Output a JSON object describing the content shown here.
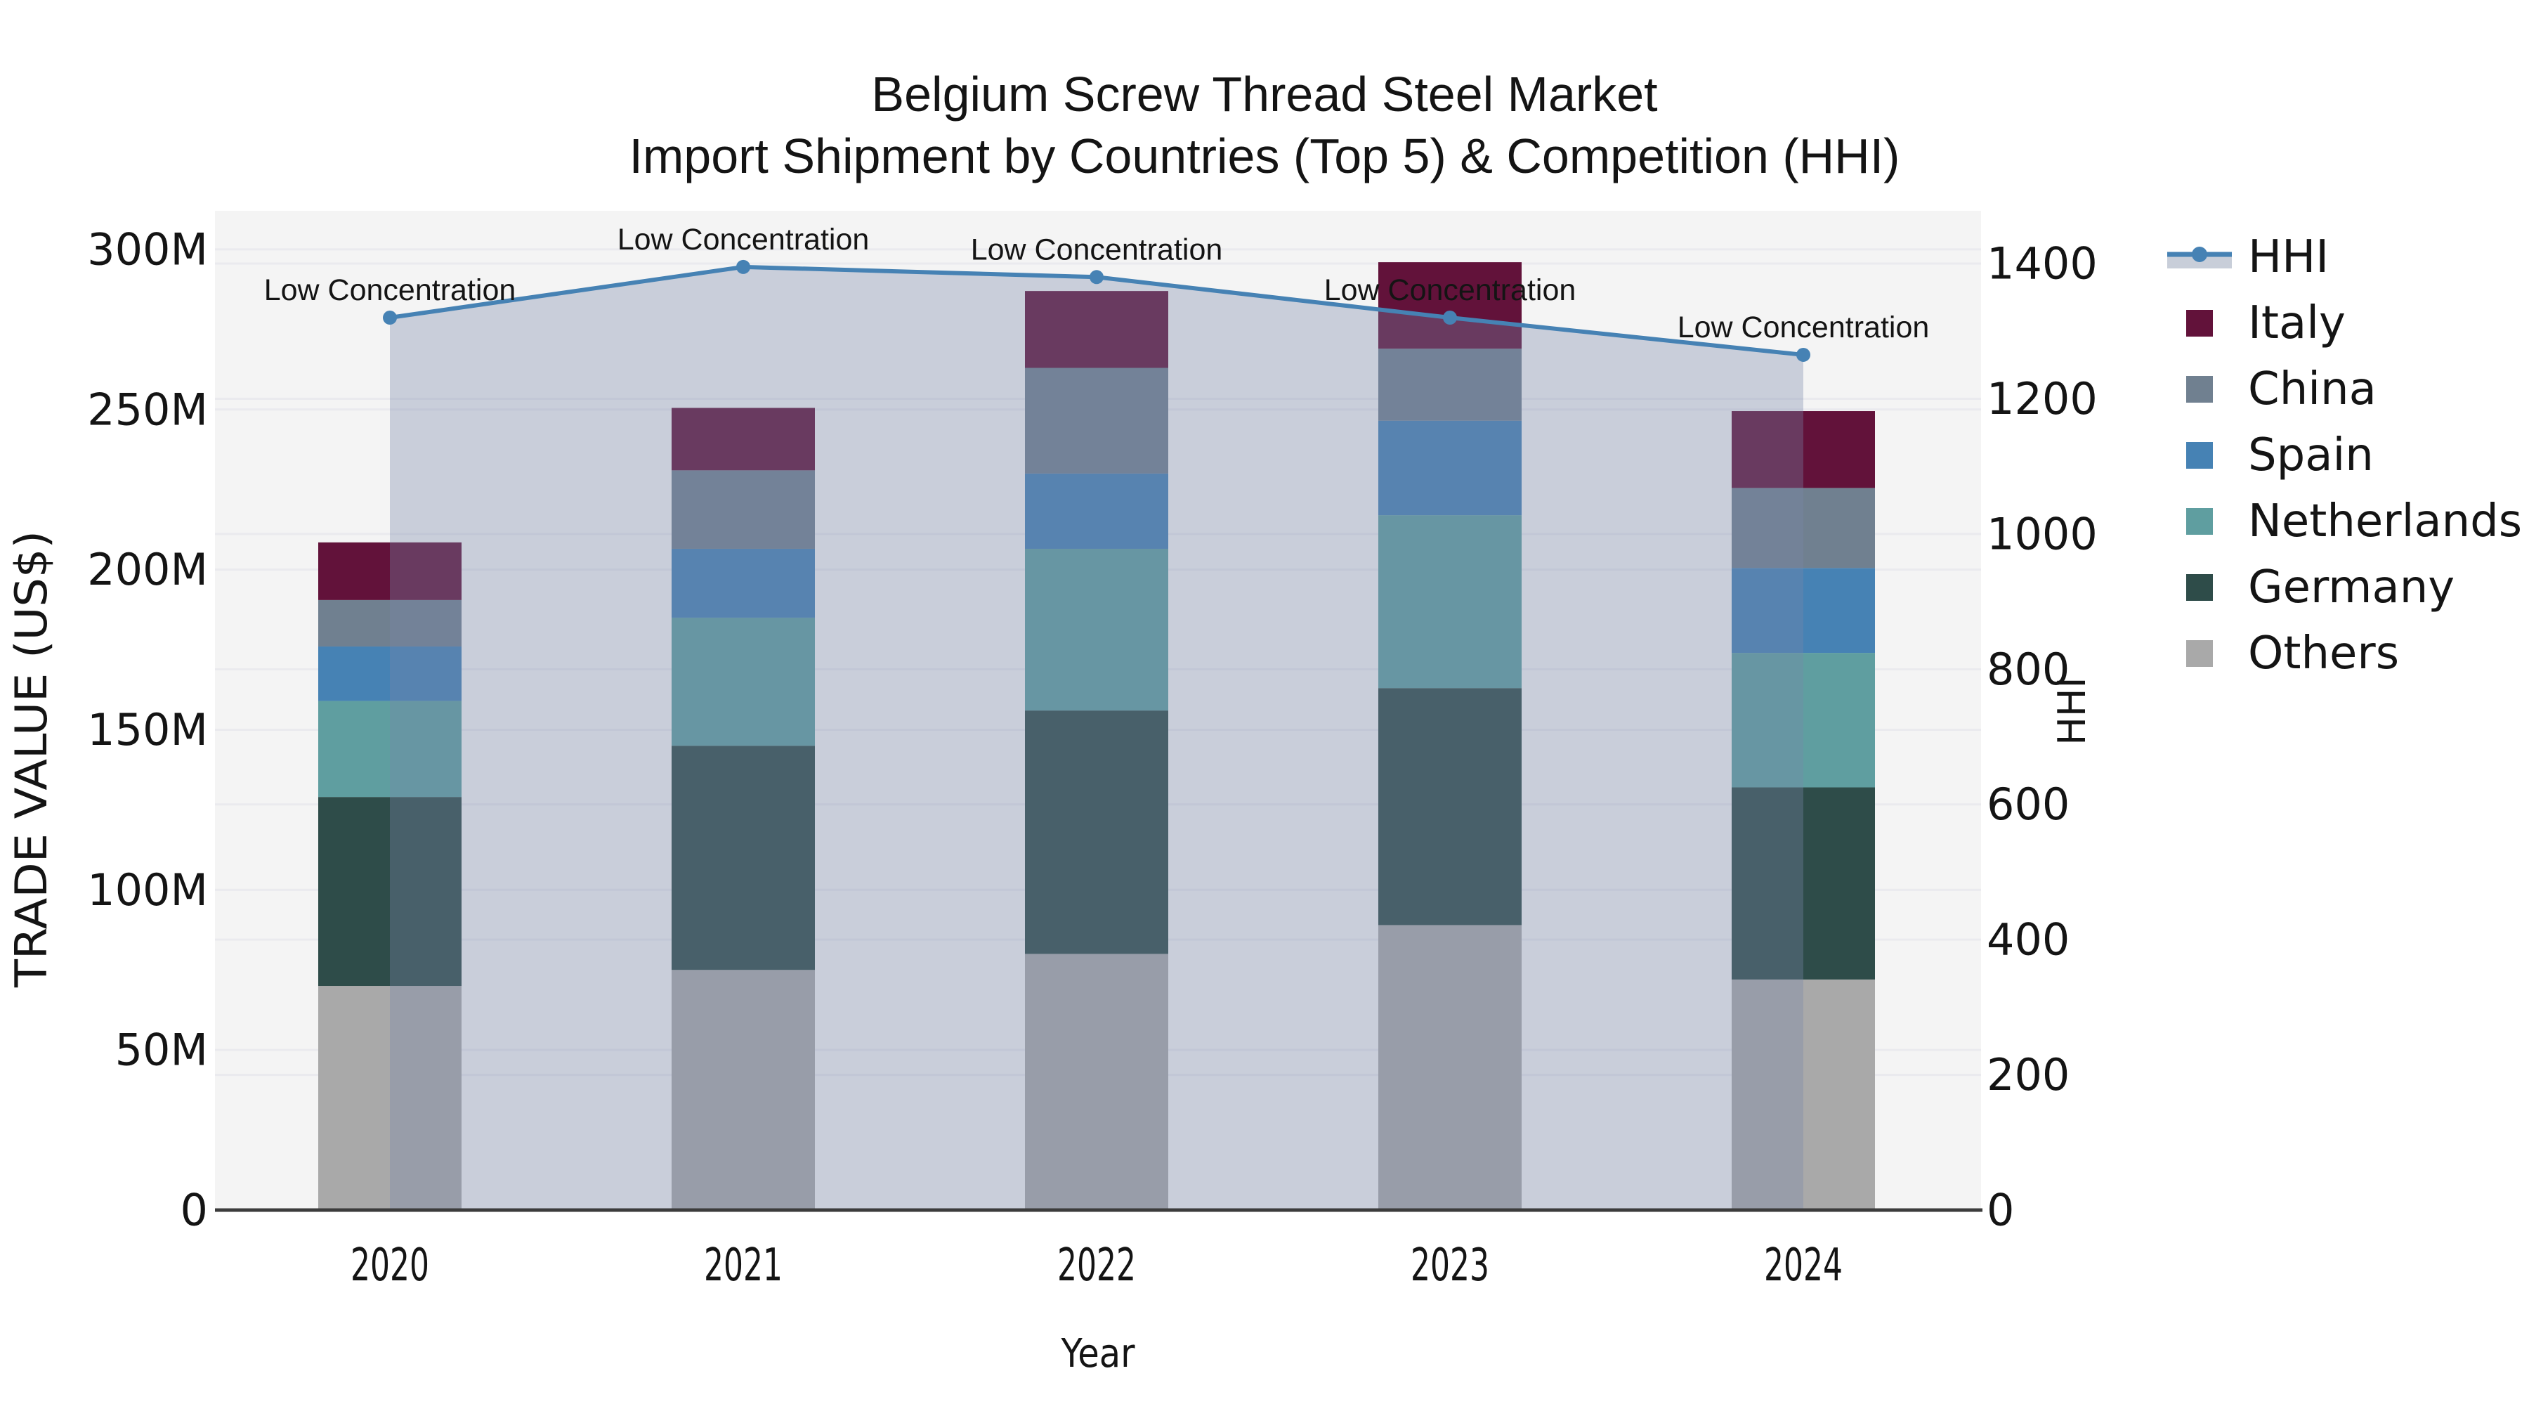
{
  "title": {
    "line1": "Belgium Screw Thread Steel Market",
    "line2": "Import Shipment by Countries (Top 5) & Competition (HHI)"
  },
  "axes": {
    "x": {
      "label": "Year"
    },
    "y_left": {
      "label": "TRADE VALUE (US$)",
      "ticks": [
        {
          "value": 0,
          "label": "0"
        },
        {
          "value": 50,
          "label": "50M"
        },
        {
          "value": 100,
          "label": "100M"
        },
        {
          "value": 150,
          "label": "150M"
        },
        {
          "value": 200,
          "label": "200M"
        },
        {
          "value": 250,
          "label": "250M"
        },
        {
          "value": 300,
          "label": "300M"
        }
      ]
    },
    "y_right": {
      "label": "HHI",
      "ticks": [
        {
          "value": 0,
          "label": "0"
        },
        {
          "value": 200,
          "label": "200"
        },
        {
          "value": 400,
          "label": "400"
        },
        {
          "value": 600,
          "label": "600"
        },
        {
          "value": 800,
          "label": "800"
        },
        {
          "value": 1000,
          "label": "1000"
        },
        {
          "value": 1200,
          "label": "1200"
        },
        {
          "value": 1400,
          "label": "1400"
        }
      ]
    }
  },
  "chart_data": {
    "type": "bar",
    "subtype": "stacked-bars-with-secondary-axis-line",
    "title": "Belgium Screw Thread Steel Market — Import Shipment by Countries (Top 5) & Competition (HHI)",
    "categories": [
      "2020",
      "2021",
      "2022",
      "2023",
      "2024"
    ],
    "xlabel": "Year",
    "ylabel_left": "TRADE VALUE (US$)",
    "ylabel_right": "HHI",
    "units_left": "million US$",
    "ylim_left": [
      0,
      312
    ],
    "ylim_right": [
      0,
      1478
    ],
    "grid": true,
    "legend_position": "right-outside",
    "stack_order": "bottom-to-top",
    "series": [
      {
        "name": "Others",
        "color": "#a9a9a9",
        "values": [
          70,
          75,
          80,
          89,
          72
        ]
      },
      {
        "name": "Germany",
        "color": "#2e4c49",
        "values": [
          59,
          70,
          76,
          74,
          60
        ]
      },
      {
        "name": "Netherlands",
        "color": "#5f9ea0",
        "values": [
          30,
          40,
          50.5,
          54,
          42
        ]
      },
      {
        "name": "Spain",
        "color": "#4682b4",
        "values": [
          17,
          21.5,
          23.5,
          29.5,
          26.5
        ]
      },
      {
        "name": "China",
        "color": "#708090",
        "values": [
          14.5,
          24.5,
          33,
          22.5,
          25
        ]
      },
      {
        "name": "Italy",
        "color": "#62123a",
        "values": [
          18,
          19.5,
          24,
          27,
          24
        ]
      }
    ],
    "bar_totals": [
      208.5,
      250.5,
      287,
      296,
      249.5
    ],
    "line_series": {
      "name": "HHI",
      "axis": "right",
      "color": "#4682b4",
      "area_fill": "rgba(120,136,168,0.35)",
      "values": [
        1320,
        1395,
        1380,
        1320,
        1265
      ]
    },
    "annotations": [
      "Low Concentration",
      "Low Concentration",
      "Low Concentration",
      "Low Concentration",
      "Low Concentration"
    ]
  },
  "legend": {
    "items": [
      {
        "label": "HHI",
        "type": "line",
        "color": "#4682b4"
      },
      {
        "label": "Italy",
        "type": "swatch",
        "color": "#62123a"
      },
      {
        "label": "China",
        "type": "swatch",
        "color": "#708090"
      },
      {
        "label": "Spain",
        "type": "swatch",
        "color": "#4682b4"
      },
      {
        "label": "Netherlands",
        "type": "swatch",
        "color": "#5f9ea0"
      },
      {
        "label": "Germany",
        "type": "swatch",
        "color": "#2e4c49"
      },
      {
        "label": "Others",
        "type": "swatch",
        "color": "#a9a9a9"
      }
    ]
  },
  "colors": {
    "plot_background": "#f4f4f4",
    "gridline": "#eaeaee",
    "axis_line": "#3c3c3c",
    "hhi_line": "#4682b4",
    "hhi_area_fill_flat": "#c8ced9"
  }
}
